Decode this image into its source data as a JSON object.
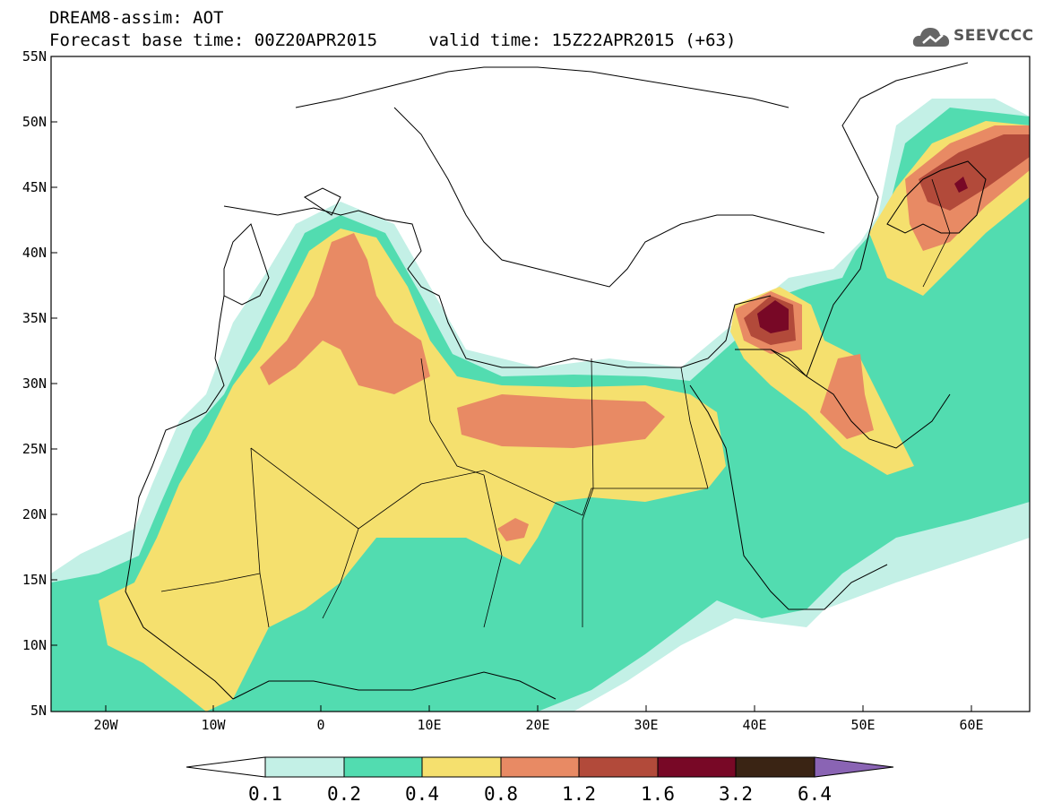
{
  "header": {
    "title": "DREAM8-assim: AOT",
    "subtitle": "Forecast base time: 00Z20APR2015     valid time: 15Z22APR2015 (+63)"
  },
  "logo": {
    "text": "SEEVCCC"
  },
  "map": {
    "lon_range": [
      -25,
      65
    ],
    "lat_range": [
      5,
      55
    ],
    "lat_ticks": [
      "55N",
      "50N",
      "45N",
      "40N",
      "35N",
      "30N",
      "25N",
      "20N",
      "15N",
      "10N",
      "5N"
    ],
    "lon_ticks": [
      "20W",
      "10W",
      "0",
      "10E",
      "20E",
      "30E",
      "40E",
      "50E",
      "60E"
    ]
  },
  "colorbar": {
    "levels": [
      "0.1",
      "0.2",
      "0.4",
      "0.8",
      "1.2",
      "1.6",
      "3.2",
      "6.4"
    ],
    "colors": [
      "#c3f0e6",
      "#52dcb0",
      "#f5e06e",
      "#e88a64",
      "#b24a3a",
      "#780826",
      "#3a2414",
      "#8a64b4"
    ]
  }
}
